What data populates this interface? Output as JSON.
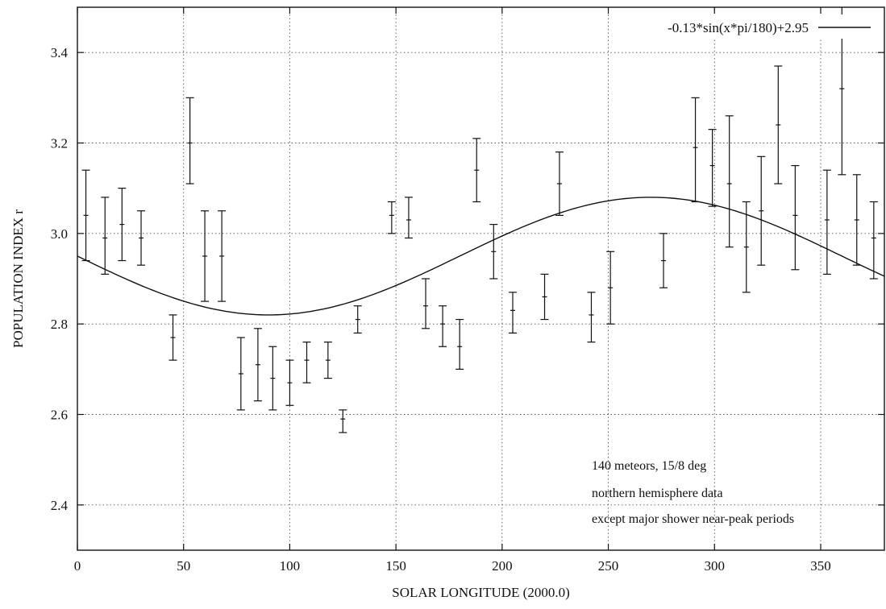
{
  "chart_data": {
    "type": "scatter",
    "xlabel": "SOLAR LONGITUDE (2000.0)",
    "ylabel": "POPULATION INDEX r",
    "xlim": [
      0,
      380
    ],
    "ylim": [
      2.3,
      3.5
    ],
    "xticks": [
      0,
      50,
      100,
      150,
      200,
      250,
      300,
      350
    ],
    "xtick_labels": [
      "0",
      "50",
      "100",
      "150",
      "200",
      "250",
      "300",
      "350"
    ],
    "yticks": [
      2.4,
      2.6,
      2.8,
      3.0,
      3.2,
      3.4
    ],
    "ytick_labels": [
      "2.4",
      "2.6",
      "2.8",
      "3.0",
      "3.2",
      "3.4"
    ],
    "grid": true,
    "legend_position": "top-right",
    "series": [
      {
        "kind": "errorbars",
        "points": [
          {
            "x": 4,
            "y": 3.04,
            "lo": 2.94,
            "hi": 3.14
          },
          {
            "x": 13,
            "y": 2.99,
            "lo": 2.91,
            "hi": 3.08
          },
          {
            "x": 21,
            "y": 3.02,
            "lo": 2.94,
            "hi": 3.1
          },
          {
            "x": 30,
            "y": 2.99,
            "lo": 2.93,
            "hi": 3.05
          },
          {
            "x": 45,
            "y": 2.77,
            "lo": 2.72,
            "hi": 2.82
          },
          {
            "x": 53,
            "y": 3.2,
            "lo": 3.11,
            "hi": 3.3
          },
          {
            "x": 60,
            "y": 2.95,
            "lo": 2.85,
            "hi": 3.05
          },
          {
            "x": 68,
            "y": 2.95,
            "lo": 2.85,
            "hi": 3.05
          },
          {
            "x": 77,
            "y": 2.69,
            "lo": 2.61,
            "hi": 2.77
          },
          {
            "x": 85,
            "y": 2.71,
            "lo": 2.63,
            "hi": 2.79
          },
          {
            "x": 92,
            "y": 2.68,
            "lo": 2.61,
            "hi": 2.75
          },
          {
            "x": 100,
            "y": 2.67,
            "lo": 2.62,
            "hi": 2.72
          },
          {
            "x": 108,
            "y": 2.72,
            "lo": 2.67,
            "hi": 2.76
          },
          {
            "x": 118,
            "y": 2.72,
            "lo": 2.68,
            "hi": 2.76
          },
          {
            "x": 125,
            "y": 2.59,
            "lo": 2.56,
            "hi": 2.61
          },
          {
            "x": 132,
            "y": 2.81,
            "lo": 2.78,
            "hi": 2.84
          },
          {
            "x": 148,
            "y": 3.04,
            "lo": 3.0,
            "hi": 3.07
          },
          {
            "x": 156,
            "y": 3.03,
            "lo": 2.99,
            "hi": 3.08
          },
          {
            "x": 164,
            "y": 2.84,
            "lo": 2.79,
            "hi": 2.9
          },
          {
            "x": 172,
            "y": 2.8,
            "lo": 2.75,
            "hi": 2.84
          },
          {
            "x": 180,
            "y": 2.75,
            "lo": 2.7,
            "hi": 2.81
          },
          {
            "x": 188,
            "y": 3.14,
            "lo": 3.07,
            "hi": 3.21
          },
          {
            "x": 196,
            "y": 2.96,
            "lo": 2.9,
            "hi": 3.02
          },
          {
            "x": 205,
            "y": 2.83,
            "lo": 2.78,
            "hi": 2.87
          },
          {
            "x": 220,
            "y": 2.86,
            "lo": 2.81,
            "hi": 2.91
          },
          {
            "x": 227,
            "y": 3.11,
            "lo": 3.04,
            "hi": 3.18
          },
          {
            "x": 242,
            "y": 2.82,
            "lo": 2.76,
            "hi": 2.87
          },
          {
            "x": 251,
            "y": 2.88,
            "lo": 2.8,
            "hi": 2.96
          },
          {
            "x": 276,
            "y": 2.94,
            "lo": 2.88,
            "hi": 3.0
          },
          {
            "x": 291,
            "y": 3.19,
            "lo": 3.07,
            "hi": 3.3
          },
          {
            "x": 299,
            "y": 3.15,
            "lo": 3.06,
            "hi": 3.23
          },
          {
            "x": 307,
            "y": 3.11,
            "lo": 2.97,
            "hi": 3.26
          },
          {
            "x": 315,
            "y": 2.97,
            "lo": 2.87,
            "hi": 3.07
          },
          {
            "x": 322,
            "y": 3.05,
            "lo": 2.93,
            "hi": 3.17
          },
          {
            "x": 330,
            "y": 3.24,
            "lo": 3.11,
            "hi": 3.37
          },
          {
            "x": 338,
            "y": 3.04,
            "lo": 2.92,
            "hi": 3.15
          },
          {
            "x": 353,
            "y": 3.03,
            "lo": 2.91,
            "hi": 3.14
          },
          {
            "x": 360,
            "y": 3.32,
            "lo": 3.13,
            "hi": 3.52
          },
          {
            "x": 367,
            "y": 3.03,
            "lo": 2.93,
            "hi": 3.13
          },
          {
            "x": 375,
            "y": 2.99,
            "lo": 2.9,
            "hi": 3.07
          }
        ]
      },
      {
        "kind": "line",
        "name": "-0.13*sin(x*pi/180)+2.95",
        "function": {
          "amplitude": -0.13,
          "offset": 2.95,
          "x_min": 0,
          "x_max": 380,
          "samples": 190
        }
      }
    ],
    "annotations": [
      "140 meteors, 15/8 deg",
      "northern hemisphere data",
      "except major shower near-peak periods"
    ]
  }
}
